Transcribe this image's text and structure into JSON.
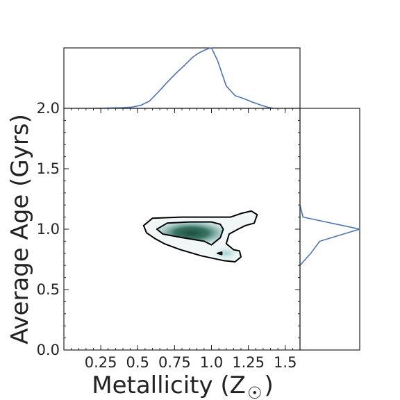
{
  "chart_data": {
    "type": "joint density plot (KDE contours with marginal distributions)",
    "xlabel": "Metallicity (Z",
    "xlabel_symbol": "☉",
    "xlabel_close": ")",
    "ylabel": "Average Age (Gyrs)",
    "xlim": [
      0.0,
      1.6
    ],
    "ylim": [
      0.0,
      2.0
    ],
    "xticks": [
      0.25,
      0.5,
      0.75,
      1.0,
      1.25,
      1.5
    ],
    "xtick_labels": [
      "0.25",
      "0.5",
      "0.75",
      "1.0",
      "1.25",
      "1.5"
    ],
    "yticks": [
      0.0,
      0.5,
      1.0,
      1.5,
      2.0
    ],
    "ytick_labels": [
      "0.0",
      "0.5",
      "1.0",
      "1.5",
      "2.0"
    ],
    "top_marginal_tick_label": "2.0",
    "line_color": "#4c72b0",
    "fill_color_dark": "#1e4d3e",
    "fill_color_light": "#e3f0f0",
    "top_marginal": {
      "x": [
        0.21,
        0.3,
        0.4,
        0.46,
        0.52,
        0.58,
        0.64,
        0.7,
        0.76,
        0.82,
        0.87,
        0.91,
        0.95,
        0.98,
        1.0,
        1.04,
        1.1,
        1.16,
        1.22,
        1.28,
        1.34,
        1.38,
        1.42
      ],
      "density": [
        0.0,
        0.005,
        0.01,
        0.02,
        0.05,
        0.12,
        0.27,
        0.43,
        0.58,
        0.72,
        0.84,
        0.91,
        0.96,
        0.99,
        1.0,
        0.8,
        0.37,
        0.21,
        0.16,
        0.1,
        0.05,
        0.02,
        0.0
      ]
    },
    "right_marginal": {
      "y": [
        0.7,
        0.8,
        0.9,
        1.0,
        1.1,
        1.2
      ],
      "density": [
        0.0,
        0.18,
        0.33,
        1.0,
        0.05,
        0.0
      ]
    },
    "contours": [
      {
        "level": "outer",
        "points": [
          [
            0.54,
            1.03
          ],
          [
            0.6,
            1.09
          ],
          [
            0.8,
            1.1
          ],
          [
            1.05,
            1.1
          ],
          [
            1.13,
            1.1
          ],
          [
            1.2,
            1.13
          ],
          [
            1.27,
            1.15
          ],
          [
            1.31,
            1.12
          ],
          [
            1.29,
            1.05
          ],
          [
            1.23,
            1.03
          ],
          [
            1.18,
            1.0
          ],
          [
            1.12,
            0.96
          ],
          [
            1.1,
            0.88
          ],
          [
            1.15,
            0.83
          ],
          [
            1.19,
            0.82
          ],
          [
            1.2,
            0.77
          ],
          [
            1.16,
            0.73
          ],
          [
            1.08,
            0.74
          ],
          [
            0.93,
            0.78
          ],
          [
            0.79,
            0.83
          ],
          [
            0.68,
            0.88
          ],
          [
            0.62,
            0.92
          ],
          [
            0.56,
            0.97
          ],
          [
            0.54,
            1.03
          ]
        ]
      },
      {
        "level": "inner",
        "points": [
          [
            0.63,
            1.0
          ],
          [
            0.7,
            1.05
          ],
          [
            0.85,
            1.06
          ],
          [
            1.0,
            1.06
          ],
          [
            1.06,
            1.04
          ],
          [
            1.08,
            1.0
          ],
          [
            1.06,
            0.93
          ],
          [
            1.0,
            0.87
          ],
          [
            0.95,
            0.9
          ],
          [
            0.8,
            0.93
          ],
          [
            0.67,
            0.96
          ],
          [
            0.63,
            1.0
          ]
        ]
      },
      {
        "level": "inner-dot",
        "points": [
          [
            1.04,
            0.8
          ],
          [
            1.07,
            0.81
          ],
          [
            1.07,
            0.79
          ],
          [
            1.04,
            0.8
          ]
        ]
      }
    ]
  }
}
